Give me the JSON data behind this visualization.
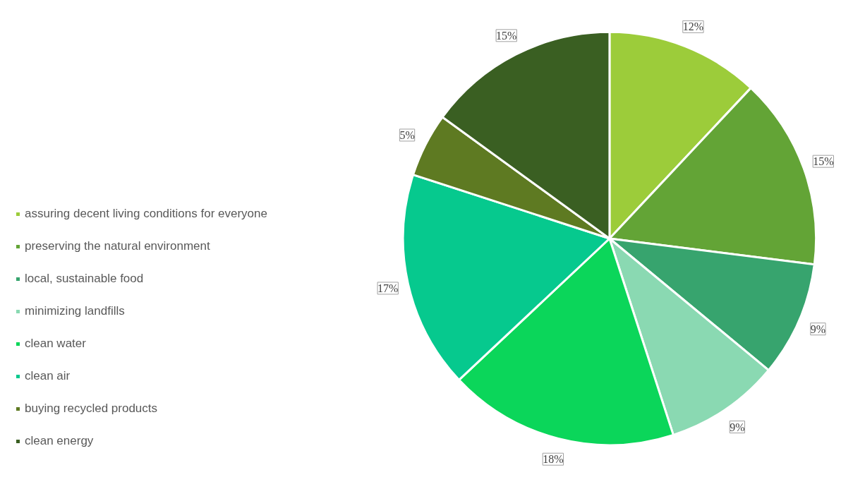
{
  "chart_data": {
    "type": "pie",
    "categories": [
      "assuring decent living conditions for everyone",
      "preserving the natural environment",
      "local, sustainable food",
      "minimizing landfills",
      "clean water",
      "clean air",
      "buying recycled products",
      "clean energy"
    ],
    "values": [
      12,
      15,
      9,
      9,
      18,
      17,
      5,
      15
    ],
    "value_labels": [
      "12%",
      "15%",
      "9%",
      "9%",
      "18%",
      "17%",
      "5%",
      "15%"
    ],
    "colors": [
      "#9ccc3a",
      "#63a436",
      "#37a46e",
      "#8ad9b2",
      "#0bd65a",
      "#06c98e",
      "#5e7a22",
      "#3a5f22"
    ],
    "legend": "left"
  }
}
